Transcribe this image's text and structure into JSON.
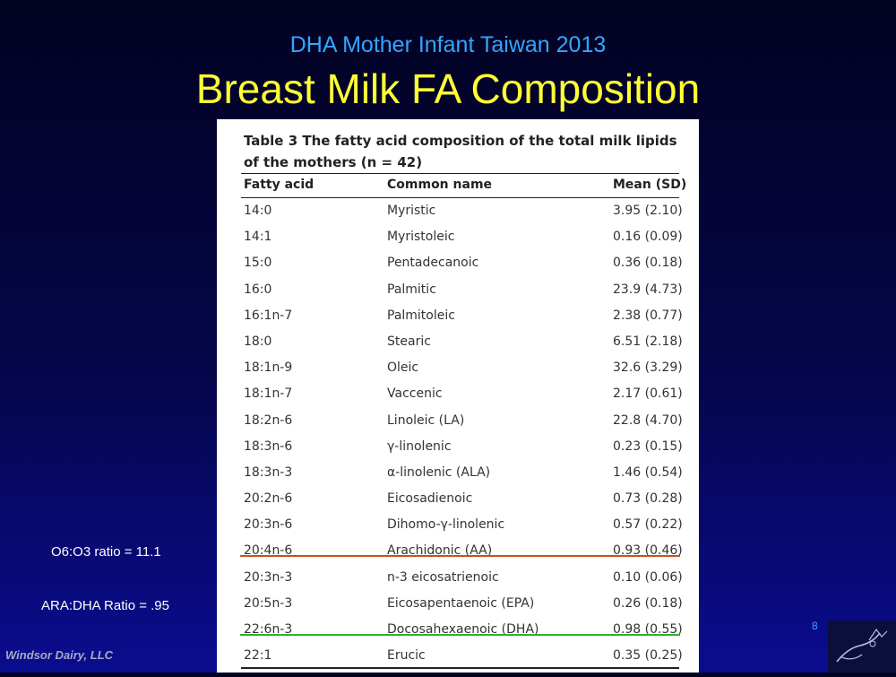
{
  "slide": {
    "subtitle": "DHA Mother Infant Taiwan 2013",
    "title": "Breast Milk FA Composition",
    "page_number": "8",
    "footer": "Windsor Dairy, LLC",
    "notes": {
      "o6_o3": "O6:O3 ratio = 11.1",
      "ara_dha": "ARA:DHA Ratio = .95"
    },
    "colors": {
      "subtitle": "#33a6ff",
      "title": "#ffff33",
      "highlight_aa": "#c8501e",
      "highlight_dha": "#2fb02f"
    }
  },
  "table": {
    "caption_line1": "Table 3 The fatty acid composition of the total milk lipids",
    "caption_line2": "of the mothers (n = 42)",
    "headers": {
      "fatty_acid": "Fatty acid",
      "common_name": "Common name",
      "mean_sd": "Mean (SD)"
    },
    "rows": [
      {
        "fa": "14:0",
        "name": "Myristic",
        "mean": "3.95 (2.10)"
      },
      {
        "fa": "14:1",
        "name": "Myristoleic",
        "mean": "0.16 (0.09)"
      },
      {
        "fa": "15:0",
        "name": "Pentadecanoic",
        "mean": "0.36 (0.18)"
      },
      {
        "fa": "16:0",
        "name": "Palmitic",
        "mean": "23.9 (4.73)"
      },
      {
        "fa": "16:1n-7",
        "name": "Palmitoleic",
        "mean": "2.38 (0.77)"
      },
      {
        "fa": "18:0",
        "name": "Stearic",
        "mean": "6.51 (2.18)"
      },
      {
        "fa": "18:1n-9",
        "name": "Oleic",
        "mean": "32.6 (3.29)"
      },
      {
        "fa": "18:1n-7",
        "name": "Vaccenic",
        "mean": "2.17 (0.61)"
      },
      {
        "fa": "18:2n-6",
        "name": "Linoleic (LA)",
        "mean": "22.8 (4.70)"
      },
      {
        "fa": "18:3n-6",
        "name": "γ-linolenic",
        "mean": "0.23 (0.15)"
      },
      {
        "fa": "18:3n-3",
        "name": "α-linolenic (ALA)",
        "mean": "1.46 (0.54)"
      },
      {
        "fa": "20:2n-6",
        "name": "Eicosadienoic",
        "mean": "0.73 (0.28)"
      },
      {
        "fa": "20:3n-6",
        "name": "Dihomo-γ-linolenic",
        "mean": "0.57 (0.22)"
      },
      {
        "fa": "20:4n-6",
        "name": "Arachidonic (AA)",
        "mean": "0.93 (0.46)"
      },
      {
        "fa": "20:3n-3",
        "name": "n-3 eicosatrienoic",
        "mean": "0.10 (0.06)"
      },
      {
        "fa": "20:5n-3",
        "name": "Eicosapentaenoic (EPA)",
        "mean": "0.26 (0.18)"
      },
      {
        "fa": "22:6n-3",
        "name": "Docosahexaenoic (DHA)",
        "mean": "0.98 (0.55)"
      },
      {
        "fa": "22:1",
        "name": "Erucic",
        "mean": "0.35 (0.25)"
      }
    ]
  }
}
